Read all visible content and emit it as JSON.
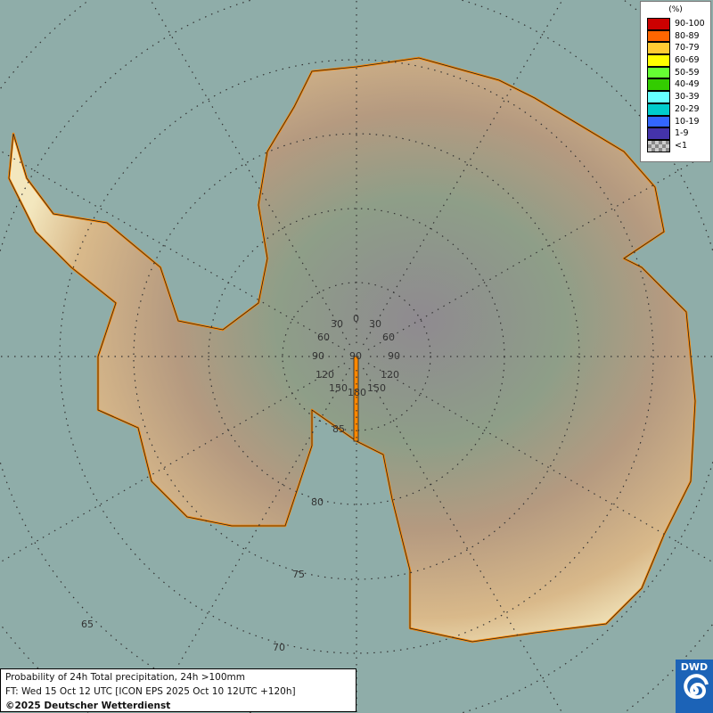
{
  "legend": {
    "unit": "(%)",
    "classes": [
      {
        "label": "90-100",
        "color": "#cc0000"
      },
      {
        "label": "80-89",
        "color": "#ff6600"
      },
      {
        "label": "70-79",
        "color": "#ffcc33"
      },
      {
        "label": "60-69",
        "color": "#ffff00"
      },
      {
        "label": "50-59",
        "color": "#66ff33"
      },
      {
        "label": "40-49",
        "color": "#33cc00"
      },
      {
        "label": "30-39",
        "color": "#66ffff"
      },
      {
        "label": "20-29",
        "color": "#00cccc"
      },
      {
        "label": "10-19",
        "color": "#3366ff"
      },
      {
        "label": "1-9",
        "color": "#4433aa"
      },
      {
        "label": "<1",
        "color": "checker"
      }
    ]
  },
  "grid_labels": {
    "meridians": [
      "0",
      "30",
      "30",
      "60",
      "60",
      "90",
      "90",
      "90",
      "120",
      "120",
      "150",
      "150",
      "180"
    ],
    "latitudes": [
      "85",
      "80",
      "75",
      "70",
      "65"
    ]
  },
  "info": {
    "line1": "Probability of 24h Total precipitation, 24h >100mm",
    "line2": "FT: Wed 15 Oct 12 UTC [ICON EPS 2025 Oct 10 12UTC +120h]",
    "line3": "©2025 Deutscher Wetterdienst"
  },
  "logo": {
    "text": "DWD"
  },
  "colors": {
    "ocean": "#8fada9",
    "coast": "#ff8800"
  }
}
